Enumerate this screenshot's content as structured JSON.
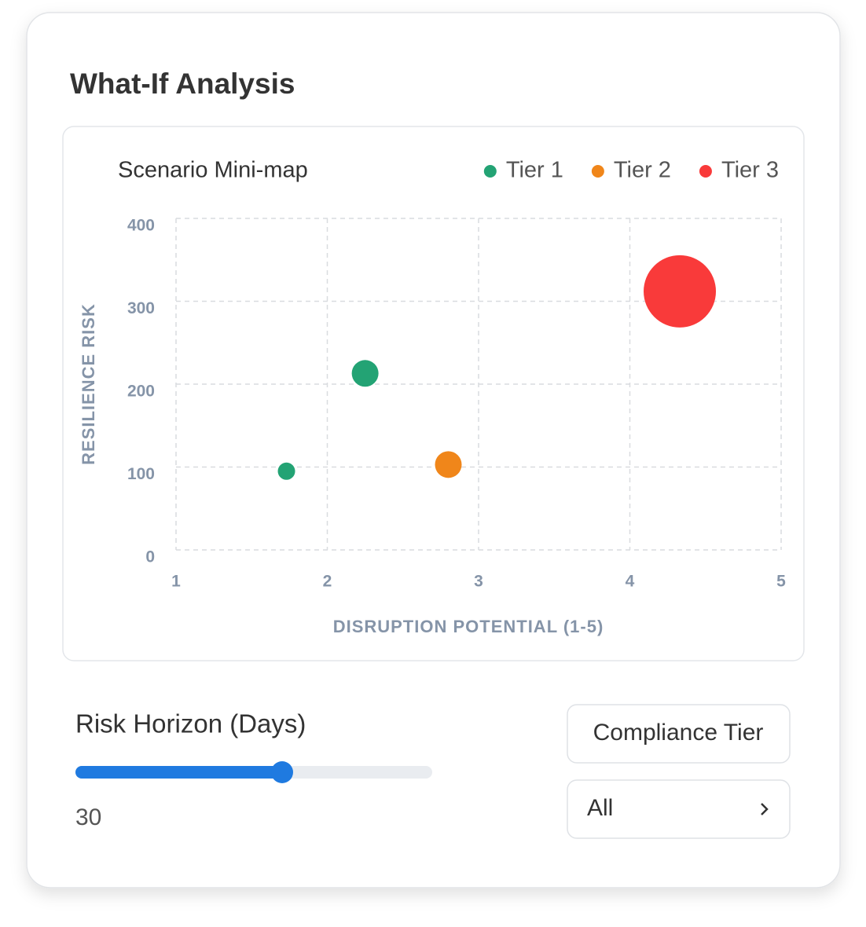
{
  "title": "What-If Analysis",
  "chart_data": {
    "type": "scatter",
    "title": "Scenario Mini-map",
    "x_label": "DISRUPTION POTENTIAL (1-5)",
    "y_label": "RESILIENCE RISK",
    "xlim": [
      1,
      5
    ],
    "xticks": [
      1,
      2,
      3,
      4,
      5
    ],
    "ylim": [
      0,
      400
    ],
    "yticks": [
      0,
      100,
      200,
      300,
      400
    ],
    "grid": true,
    "legend": "top-right",
    "series": [
      {
        "name": "Tier 1",
        "color": "#23a374",
        "x": [
          1.73,
          2.25
        ],
        "values": [
          95,
          213
        ],
        "sizes": [
          11,
          17
        ]
      },
      {
        "name": "Tier 2",
        "color": "#f0861a",
        "x": [
          2.8
        ],
        "values": [
          103
        ],
        "sizes": [
          17
        ]
      },
      {
        "name": "Tier 3",
        "color": "#f93a3a",
        "x": [
          4.33
        ],
        "values": [
          312
        ],
        "sizes": [
          46
        ]
      }
    ]
  },
  "slider": {
    "label": "Risk Horizon (Days)",
    "value": 30
  },
  "filter": {
    "label": "Compliance Tier",
    "value": "All"
  }
}
